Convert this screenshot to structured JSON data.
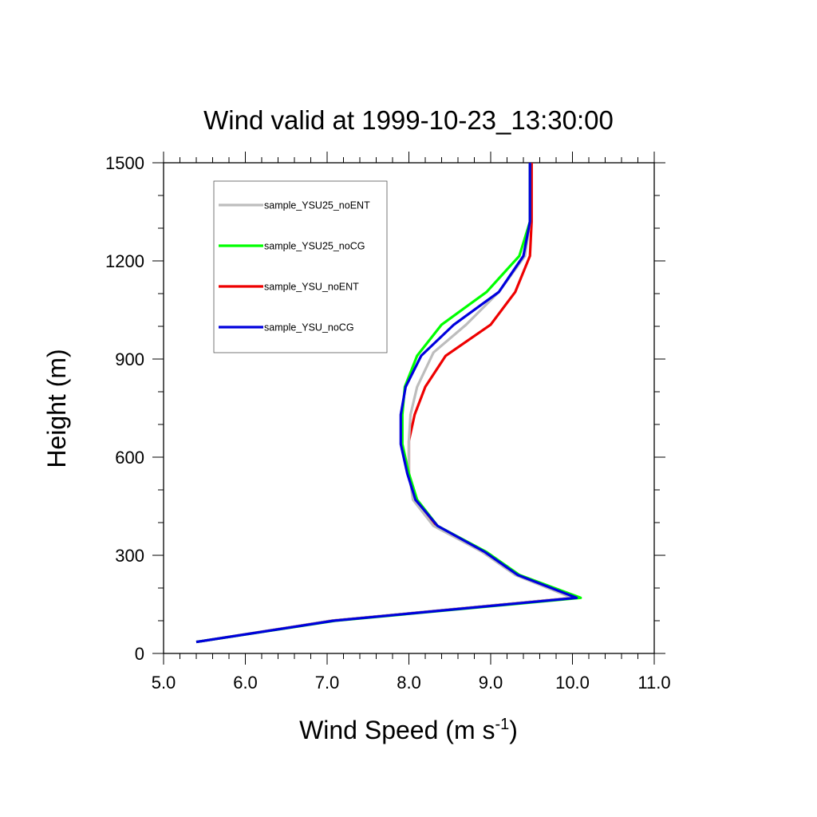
{
  "chart_data": {
    "type": "line",
    "title": "Wind valid at 1999-10-23_13:30:00",
    "xlabel": "Wind Speed (m s",
    "xlabel_sup": "-1",
    "xlabel_suffix": ")",
    "ylabel": "Height (m)",
    "xlim": [
      5.0,
      11.0
    ],
    "ylim": [
      0,
      1500
    ],
    "x_ticks": [
      "5.0",
      "6.0",
      "7.0",
      "8.0",
      "9.0",
      "10.0",
      "11.0"
    ],
    "y_ticks": [
      "0",
      "300",
      "600",
      "900",
      "1200",
      "1500"
    ],
    "legend_position": "top-left",
    "grid": false,
    "series": [
      {
        "name": "sample_YSU25_noENT",
        "color": "#bdbdbd",
        "points": [
          [
            5.4,
            35
          ],
          [
            7.05,
            100
          ],
          [
            10.0,
            170
          ],
          [
            9.3,
            240
          ],
          [
            8.9,
            310
          ],
          [
            8.3,
            390
          ],
          [
            8.05,
            470
          ],
          [
            8.0,
            550
          ],
          [
            8.0,
            650
          ],
          [
            8.02,
            730
          ],
          [
            8.1,
            815
          ],
          [
            8.3,
            920
          ],
          [
            8.7,
            1005
          ],
          [
            9.1,
            1105
          ],
          [
            9.42,
            1215
          ],
          [
            9.48,
            1320
          ],
          [
            9.48,
            1500
          ]
        ]
      },
      {
        "name": "sample_YSU25_noCG",
        "color": "#00ff00",
        "points": [
          [
            5.4,
            35
          ],
          [
            7.1,
            100
          ],
          [
            10.1,
            170
          ],
          [
            9.35,
            240
          ],
          [
            8.95,
            310
          ],
          [
            8.35,
            390
          ],
          [
            8.1,
            470
          ],
          [
            8.0,
            550
          ],
          [
            7.92,
            640
          ],
          [
            7.92,
            730
          ],
          [
            7.95,
            815
          ],
          [
            8.1,
            910
          ],
          [
            8.4,
            1005
          ],
          [
            8.95,
            1105
          ],
          [
            9.35,
            1215
          ],
          [
            9.48,
            1320
          ],
          [
            9.48,
            1500
          ]
        ]
      },
      {
        "name": "sample_YSU_noENT",
        "color": "#ee0000",
        "points": [
          [
            5.4,
            35
          ],
          [
            7.05,
            100
          ],
          [
            10.0,
            170
          ],
          [
            9.32,
            240
          ],
          [
            8.9,
            310
          ],
          [
            8.33,
            390
          ],
          [
            8.08,
            470
          ],
          [
            8.0,
            550
          ],
          [
            8.0,
            650
          ],
          [
            8.07,
            730
          ],
          [
            8.2,
            815
          ],
          [
            8.45,
            910
          ],
          [
            9.0,
            1005
          ],
          [
            9.3,
            1105
          ],
          [
            9.48,
            1215
          ],
          [
            9.5,
            1320
          ],
          [
            9.5,
            1500
          ]
        ]
      },
      {
        "name": "sample_YSU_noCG",
        "color": "#0000dd",
        "points": [
          [
            5.4,
            35
          ],
          [
            7.08,
            100
          ],
          [
            10.05,
            170
          ],
          [
            9.33,
            240
          ],
          [
            8.93,
            310
          ],
          [
            8.35,
            390
          ],
          [
            8.08,
            470
          ],
          [
            7.98,
            550
          ],
          [
            7.9,
            640
          ],
          [
            7.9,
            730
          ],
          [
            7.96,
            815
          ],
          [
            8.15,
            910
          ],
          [
            8.55,
            1005
          ],
          [
            9.1,
            1105
          ],
          [
            9.4,
            1215
          ],
          [
            9.48,
            1320
          ],
          [
            9.48,
            1500
          ]
        ]
      }
    ]
  }
}
